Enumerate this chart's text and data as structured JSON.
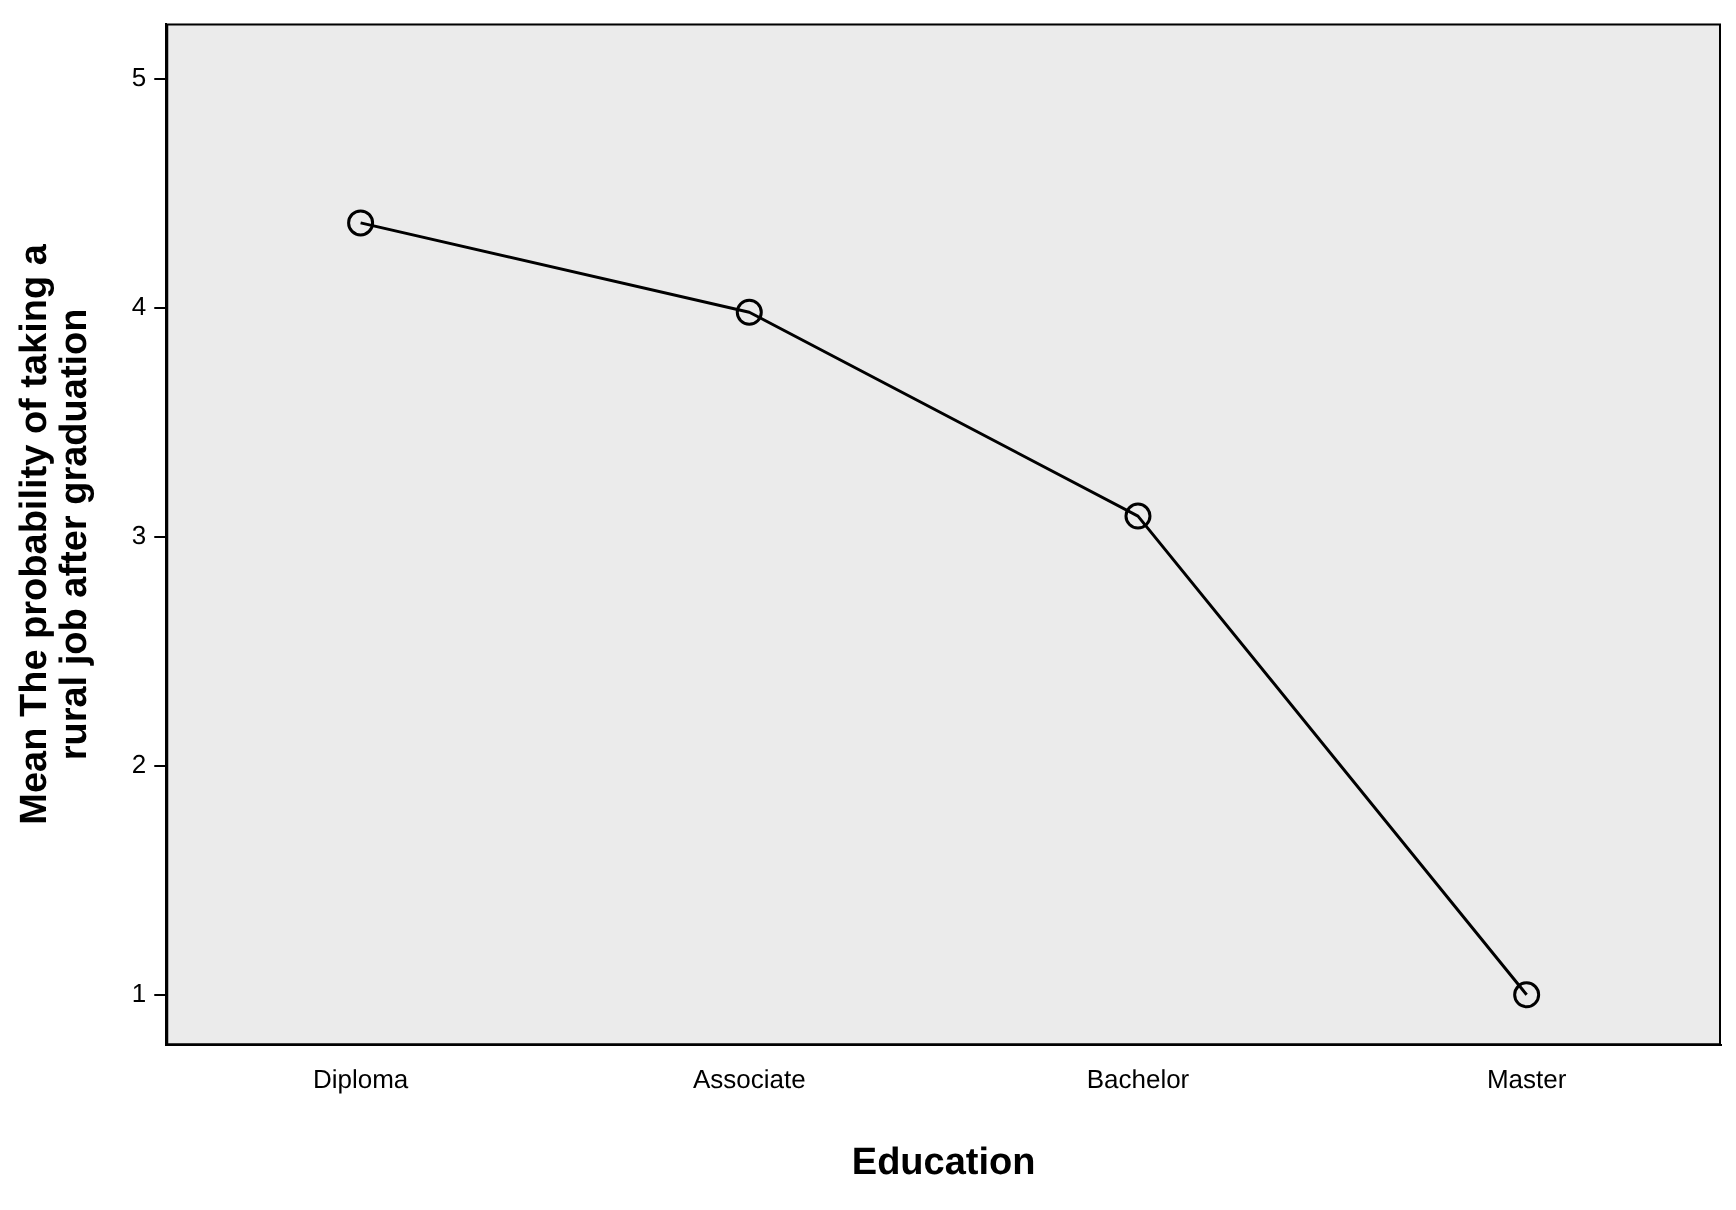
{
  "chart_data": {
    "type": "line",
    "xlabel": "Education",
    "ylabel": "Mean The probability of taking a\nrural job after graduation",
    "categories": [
      "Diploma",
      "Associate",
      "Bachelor",
      "Master"
    ],
    "series": [
      {
        "color": "#000000",
        "values": [
          4.37,
          3.98,
          3.09,
          1.0
        ]
      }
    ],
    "ylim": [
      0.78,
      5.24
    ],
    "yticks": [
      1,
      2,
      3,
      4,
      5
    ],
    "grid": false,
    "legend": false,
    "marker": "circle",
    "line_style": "solid"
  }
}
